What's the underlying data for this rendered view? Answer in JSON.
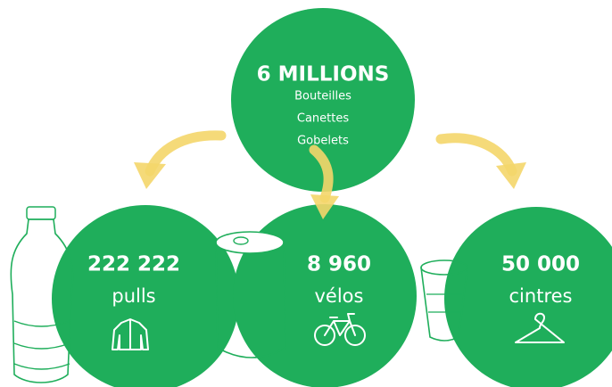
{
  "top": {
    "title": "6 MILLIONS",
    "lines": [
      "Bouteilles",
      "Canettes",
      "Gobelets"
    ]
  },
  "nodes": [
    {
      "value": "222 222",
      "label": "pulls"
    },
    {
      "value": "8 960",
      "label": "vélos"
    },
    {
      "value": "50 000",
      "label": "cintres"
    }
  ]
}
